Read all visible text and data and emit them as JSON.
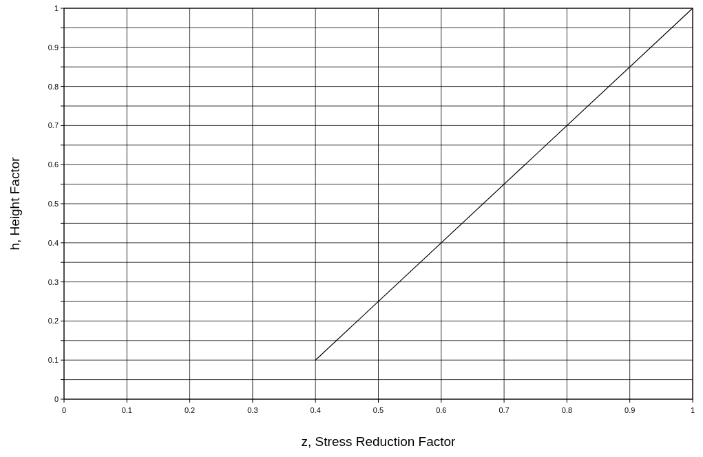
{
  "chart_data": {
    "type": "line",
    "xlabel": "z, Stress Reduction Factor",
    "ylabel": "h, Height Factor",
    "x": [
      0.4,
      1
    ],
    "series": [
      {
        "color": "#000000",
        "values": [
          0.1,
          1
        ]
      }
    ],
    "xlim": [
      0,
      1
    ],
    "ylim": [
      0,
      1
    ],
    "xticks": [
      0,
      0.1,
      0.2,
      0.3,
      0.4,
      0.5,
      0.6,
      0.7,
      0.8,
      0.9,
      1
    ],
    "yticks": [
      0,
      {
        "value": 0.05,
        "label": null
      },
      0.1,
      {
        "value": 0.15,
        "label": null
      },
      0.2,
      {
        "value": 0.25,
        "label": null
      },
      0.3,
      {
        "value": 0.35,
        "label": null
      },
      0.4,
      {
        "value": 0.45,
        "label": null
      },
      0.5,
      {
        "value": 0.55,
        "label": null
      },
      0.6,
      {
        "value": 0.65,
        "label": null
      },
      0.7,
      {
        "value": 0.75,
        "label": null
      },
      0.8,
      {
        "value": 0.85,
        "label": null
      },
      0.9,
      {
        "value": 0.95,
        "label": null
      },
      1
    ],
    "grid": true,
    "marker": "none",
    "line_style": "solid"
  }
}
